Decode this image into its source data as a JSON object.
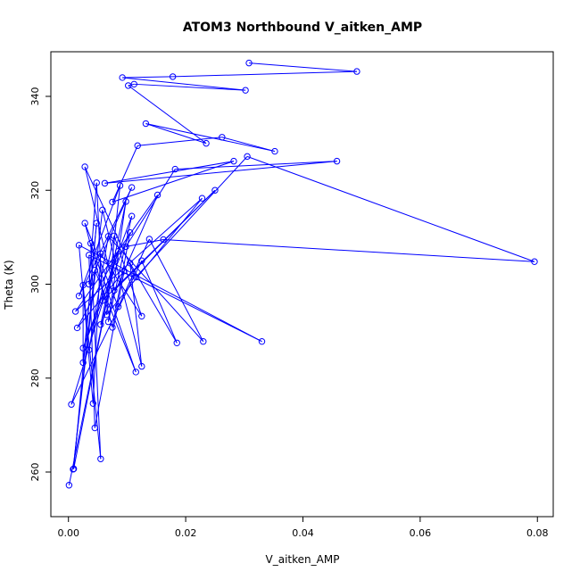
{
  "chart_data": {
    "type": "line",
    "title": "ATOM3 Northbound V_aitken_AMP",
    "xlabel": "V_aitken_AMP",
    "ylabel": "Theta (K)",
    "xlim": [
      -0.003,
      0.0827
    ],
    "ylim": [
      250.5,
      349.5
    ],
    "xticks": [
      "0.00",
      "0.02",
      "0.04",
      "0.06",
      "0.08"
    ],
    "xtick_values": [
      0.0,
      0.02,
      0.04,
      0.06,
      0.08
    ],
    "yticks": [
      "260",
      "280",
      "300",
      "320",
      "340"
    ],
    "ytick_values": [
      260,
      280,
      300,
      320,
      340
    ],
    "grid": false,
    "series": [
      {
        "color": "#0000ff",
        "marker": "open-circle",
        "points": [
          [
            0.0001,
            257.2
          ],
          [
            0.0009,
            260.7
          ],
          [
            0.0025,
            283.3
          ],
          [
            0.0055,
            262.8
          ],
          [
            0.0115,
            281.3
          ],
          [
            0.0008,
            260.6
          ],
          [
            0.0125,
            282.5
          ],
          [
            0.0185,
            287.5
          ],
          [
            0.0005,
            274.4
          ],
          [
            0.0015,
            290.7
          ],
          [
            0.0045,
            269.4
          ],
          [
            0.033,
            287.8
          ],
          [
            0.0042,
            274.6
          ],
          [
            0.0125,
            293.2
          ],
          [
            0.0035,
            286.0
          ],
          [
            0.023,
            287.8
          ],
          [
            0.0085,
            295.2
          ],
          [
            0.0075,
            290.8
          ],
          [
            0.0025,
            286.4
          ],
          [
            0.0068,
            292.0
          ],
          [
            0.0055,
            291.4
          ],
          [
            0.0012,
            294.2
          ],
          [
            0.0065,
            293.5
          ],
          [
            0.0018,
            297.5
          ],
          [
            0.0035,
            300.0
          ],
          [
            0.0058,
            296.5
          ],
          [
            0.0078,
            298.7
          ],
          [
            0.008,
            305.5
          ],
          [
            0.0025,
            299.8
          ],
          [
            0.0115,
            301.5
          ],
          [
            0.0095,
            302.8
          ],
          [
            0.0045,
            303.0
          ],
          [
            0.0795,
            304.8
          ],
          [
            0.0105,
            304.5
          ],
          [
            0.0035,
            306.2
          ],
          [
            0.0125,
            305.0
          ],
          [
            0.0055,
            306.5
          ],
          [
            0.0085,
            307.0
          ],
          [
            0.0038,
            308.7
          ],
          [
            0.0098,
            308.0
          ],
          [
            0.0018,
            308.3
          ],
          [
            0.0068,
            310.2
          ],
          [
            0.0162,
            309.5
          ],
          [
            0.0138,
            309.6
          ],
          [
            0.0078,
            310.3
          ],
          [
            0.0105,
            311.0
          ],
          [
            0.0028,
            313.0
          ],
          [
            0.0048,
            313.0
          ],
          [
            0.0108,
            314.5
          ],
          [
            0.0058,
            315.8
          ],
          [
            0.0098,
            317.6
          ],
          [
            0.0075,
            317.5
          ],
          [
            0.0152,
            319.0
          ],
          [
            0.0228,
            318.3
          ],
          [
            0.0088,
            321.0
          ],
          [
            0.0108,
            320.6
          ],
          [
            0.0048,
            321.6
          ],
          [
            0.0062,
            321.5
          ],
          [
            0.025,
            320.0
          ],
          [
            0.0028,
            325.0
          ],
          [
            0.0182,
            324.5
          ],
          [
            0.0458,
            326.2
          ],
          [
            0.0282,
            326.2
          ],
          [
            0.0305,
            327.2
          ],
          [
            0.0118,
            329.5
          ],
          [
            0.0352,
            328.3
          ],
          [
            0.0235,
            330.0
          ],
          [
            0.0262,
            331.3
          ],
          [
            0.0132,
            334.2
          ],
          [
            0.0102,
            342.3
          ],
          [
            0.0112,
            342.6
          ],
          [
            0.0302,
            341.3
          ],
          [
            0.0092,
            344.0
          ],
          [
            0.0178,
            344.2
          ],
          [
            0.0492,
            345.3
          ],
          [
            0.0308,
            347.1
          ]
        ],
        "path_order": [
          0,
          27,
          1,
          47,
          2,
          28,
          3,
          38,
          4,
          31,
          5,
          49,
          6,
          33,
          7,
          35,
          8,
          37,
          9,
          30,
          10,
          34,
          11,
          40,
          12,
          36,
          13,
          44,
          14,
          41,
          15,
          43,
          16,
          46,
          17,
          45,
          18,
          48,
          19,
          50,
          20,
          52,
          21,
          53,
          22,
          54,
          23,
          55,
          24,
          56,
          25,
          58,
          26,
          59,
          29,
          63,
          32,
          42,
          39,
          60,
          61,
          57,
          62,
          51,
          64,
          67,
          65,
          68,
          66,
          69,
          70,
          71,
          72,
          73,
          74,
          75
        ]
      }
    ]
  }
}
